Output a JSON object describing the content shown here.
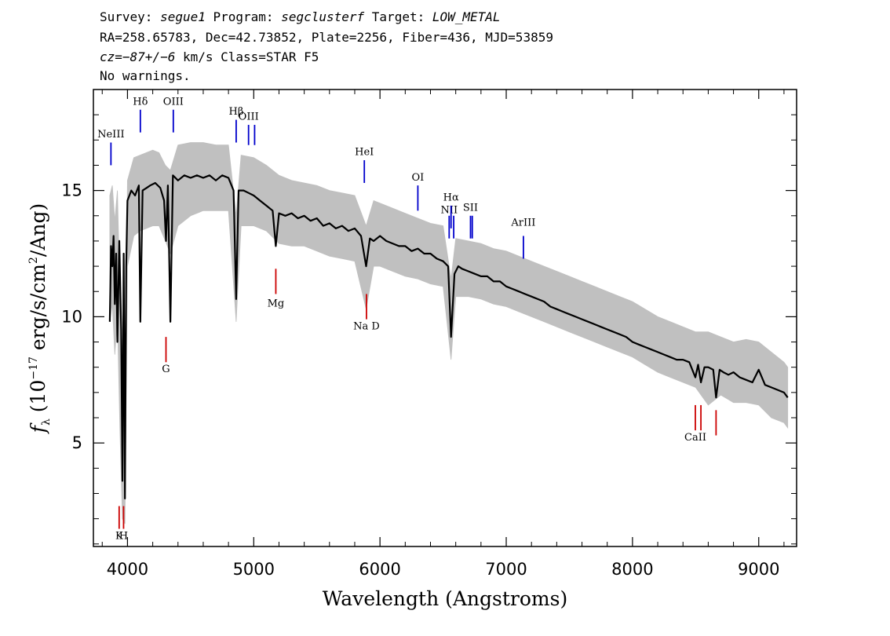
{
  "header": {
    "line1": {
      "survey_label": "Survey: ",
      "survey": "segue1",
      "program_label": " Program: ",
      "program": "segclusterf",
      "target_label": " Target: ",
      "target": "LOW_METAL"
    },
    "line2": "RA=258.65783, Dec=42.73852, Plate=2256, Fiber=436, MJD=53859",
    "line3": {
      "cz_label": "cz",
      "cz_value": "=−87+/−6",
      "cz_units": " km/s Class=STAR F5"
    },
    "line4": "No warnings."
  },
  "chart_data": {
    "type": "line",
    "xlabel": "Wavelength (Angstroms)",
    "ylabel": "f_λ (10^-17 erg/s/cm^2/Ang)",
    "ylabel_parts": {
      "f": "f",
      "sub": "λ",
      "pre": " (10",
      "sup1": "−17",
      "mid": " erg/s/cm",
      "sup2": "2",
      "post": "/Ang)"
    },
    "xlim": [
      3730,
      9300
    ],
    "ylim": [
      0.9,
      19.0
    ],
    "x_ticks": [
      4000,
      5000,
      6000,
      7000,
      8000,
      9000
    ],
    "x_tick_labels": [
      "4000",
      "5000",
      "6000",
      "7000",
      "8000",
      "9000"
    ],
    "y_ticks": [
      5,
      10,
      15
    ],
    "y_tick_labels": [
      "5",
      "10",
      "15"
    ],
    "series": [
      {
        "role": "error",
        "color": "#c0c0c0",
        "x": [
          3860,
          3880,
          3900,
          3920,
          3940,
          3960,
          3980,
          4000,
          4050,
          4100,
          4150,
          4200,
          4250,
          4300,
          4340,
          4400,
          4500,
          4600,
          4700,
          4800,
          4861,
          4900,
          5000,
          5100,
          5200,
          5300,
          5400,
          5500,
          5600,
          5700,
          5800,
          5890,
          5950,
          6000,
          6100,
          6200,
          6300,
          6400,
          6500,
          6563,
          6600,
          6700,
          6800,
          6900,
          7000,
          7100,
          7200,
          7300,
          7400,
          7500,
          7600,
          7700,
          7800,
          7900,
          8000,
          8100,
          8200,
          8300,
          8400,
          8500,
          8600,
          8700,
          8800,
          8900,
          9000,
          9100,
          9200,
          9230
        ],
        "upper": [
          14.8,
          15.2,
          13.8,
          15.0,
          11.0,
          8.5,
          6.0,
          15.4,
          16.3,
          16.4,
          16.5,
          16.6,
          16.5,
          16.0,
          15.8,
          16.8,
          16.9,
          16.9,
          16.8,
          16.8,
          14.0,
          16.4,
          16.3,
          16.0,
          15.6,
          15.4,
          15.3,
          15.2,
          15.0,
          14.9,
          14.8,
          13.6,
          14.6,
          14.5,
          14.3,
          14.1,
          13.9,
          13.7,
          13.6,
          11.5,
          13.1,
          13.0,
          12.9,
          12.7,
          12.6,
          12.4,
          12.2,
          12.0,
          11.8,
          11.6,
          11.4,
          11.2,
          11.0,
          10.8,
          10.6,
          10.3,
          10.0,
          9.8,
          9.6,
          9.4,
          9.4,
          9.2,
          9.0,
          9.1,
          9.0,
          8.6,
          8.2,
          8.0
        ],
        "lower": [
          9.8,
          10.5,
          8.5,
          10.0,
          5.5,
          2.0,
          1.8,
          12.0,
          13.2,
          13.4,
          13.5,
          13.6,
          13.6,
          13.0,
          12.5,
          13.6,
          14.0,
          14.2,
          14.2,
          14.2,
          9.8,
          13.6,
          13.6,
          13.4,
          12.9,
          12.8,
          12.8,
          12.6,
          12.4,
          12.3,
          12.2,
          10.3,
          12.0,
          12.0,
          11.8,
          11.6,
          11.5,
          11.3,
          11.2,
          8.3,
          10.8,
          10.8,
          10.7,
          10.5,
          10.4,
          10.2,
          10.0,
          9.8,
          9.6,
          9.4,
          9.2,
          9.0,
          8.8,
          8.6,
          8.4,
          8.1,
          7.8,
          7.6,
          7.4,
          7.2,
          6.5,
          6.9,
          6.6,
          6.6,
          6.5,
          6.0,
          5.8,
          5.6
        ]
      },
      {
        "role": "flux",
        "color": "#000000",
        "x": [
          3860,
          3870,
          3880,
          3890,
          3900,
          3910,
          3920,
          3935,
          3950,
          3960,
          3970,
          3980,
          3990,
          4000,
          4030,
          4060,
          4090,
          4102,
          4120,
          4150,
          4180,
          4220,
          4260,
          4290,
          4305,
          4320,
          4340,
          4360,
          4400,
          4450,
          4500,
          4550,
          4600,
          4650,
          4700,
          4750,
          4800,
          4840,
          4861,
          4880,
          4920,
          4960,
          5000,
          5050,
          5100,
          5150,
          5175,
          5200,
          5250,
          5300,
          5350,
          5400,
          5450,
          5500,
          5550,
          5600,
          5650,
          5700,
          5750,
          5800,
          5850,
          5890,
          5920,
          5950,
          6000,
          6050,
          6100,
          6150,
          6200,
          6250,
          6300,
          6350,
          6400,
          6450,
          6500,
          6540,
          6563,
          6590,
          6620,
          6650,
          6700,
          6750,
          6800,
          6850,
          6900,
          6950,
          7000,
          7050,
          7100,
          7150,
          7200,
          7250,
          7300,
          7350,
          7400,
          7450,
          7500,
          7550,
          7600,
          7650,
          7700,
          7750,
          7800,
          7850,
          7900,
          7950,
          8000,
          8050,
          8100,
          8150,
          8200,
          8250,
          8300,
          8350,
          8400,
          8450,
          8498,
          8520,
          8542,
          8570,
          8600,
          8640,
          8662,
          8690,
          8720,
          8760,
          8800,
          8850,
          8900,
          8950,
          9000,
          9050,
          9100,
          9150,
          9200,
          9230
        ],
        "y": [
          9.8,
          12.8,
          12.0,
          13.2,
          10.5,
          12.5,
          9.0,
          13.0,
          9.5,
          3.5,
          12.5,
          2.8,
          12.0,
          14.6,
          15.0,
          14.8,
          15.2,
          9.8,
          15.0,
          15.1,
          15.2,
          15.3,
          15.1,
          14.6,
          13.0,
          15.2,
          9.8,
          15.6,
          15.4,
          15.6,
          15.5,
          15.6,
          15.5,
          15.6,
          15.4,
          15.6,
          15.5,
          15.0,
          10.7,
          15.0,
          15.0,
          14.9,
          14.8,
          14.6,
          14.4,
          14.2,
          12.8,
          14.1,
          14.0,
          14.1,
          13.9,
          14.0,
          13.8,
          13.9,
          13.6,
          13.7,
          13.5,
          13.6,
          13.4,
          13.5,
          13.2,
          12.0,
          13.1,
          13.0,
          13.2,
          13.0,
          12.9,
          12.8,
          12.8,
          12.6,
          12.7,
          12.5,
          12.5,
          12.3,
          12.2,
          12.0,
          9.2,
          11.7,
          12.0,
          11.9,
          11.8,
          11.7,
          11.6,
          11.6,
          11.4,
          11.4,
          11.2,
          11.1,
          11.0,
          10.9,
          10.8,
          10.7,
          10.6,
          10.4,
          10.3,
          10.2,
          10.1,
          10.0,
          9.9,
          9.8,
          9.7,
          9.6,
          9.5,
          9.4,
          9.3,
          9.2,
          9.0,
          8.9,
          8.8,
          8.7,
          8.6,
          8.5,
          8.4,
          8.3,
          8.3,
          8.2,
          7.6,
          8.1,
          7.4,
          8.0,
          8.0,
          7.9,
          6.8,
          7.9,
          7.8,
          7.7,
          7.8,
          7.6,
          7.5,
          7.4,
          7.9,
          7.3,
          7.2,
          7.1,
          7.0,
          6.8
        ]
      }
    ],
    "emission_color": "#0000cc",
    "absorption_color": "#cc0000",
    "emission_lines": [
      {
        "label": "NeIII",
        "x": 3869,
        "y_top": 16.9,
        "y_bottom": 16.0,
        "label_y": 17.1
      },
      {
        "label": "Hδ",
        "x": 4102,
        "y_top": 18.2,
        "y_bottom": 17.3,
        "label_y": 18.4
      },
      {
        "label": "OIII",
        "x": 4363,
        "y_top": 18.2,
        "y_bottom": 17.3,
        "label_y": 18.4
      },
      {
        "label": "Hβ",
        "x": 4861,
        "y_top": 17.8,
        "y_bottom": 16.9,
        "label_y": 18.0
      },
      {
        "label": "OIII",
        "x": 4959,
        "y_top": 17.6,
        "y_bottom": 16.8,
        "label_y": 17.8
      },
      {
        "label": "OIII",
        "x": 5007,
        "y_top": 17.6,
        "y_bottom": 16.8,
        "label_y": 17.8
      },
      {
        "label": "HeI",
        "x": 5876,
        "y_top": 16.2,
        "y_bottom": 15.3,
        "label_y": 16.4
      },
      {
        "label": "OI",
        "x": 6300,
        "y_top": 15.2,
        "y_bottom": 14.2,
        "label_y": 15.4
      },
      {
        "label": "NII",
        "x": 6548,
        "y_top": 14.0,
        "y_bottom": 13.1,
        "label_y": 14.1
      },
      {
        "label": "Hα",
        "x": 6563,
        "y_top": 14.4,
        "y_bottom": 13.5,
        "label_y": 14.6
      },
      {
        "label": "NII",
        "x": 6584,
        "y_top": 14.0,
        "y_bottom": 13.1,
        "label_y": 14.1
      },
      {
        "label": "SII",
        "x": 6717,
        "y_top": 14.0,
        "y_bottom": 13.1,
        "label_y": 14.2
      },
      {
        "label": "SII",
        "x": 6731,
        "y_top": 14.0,
        "y_bottom": 13.1,
        "label_y": 14.2
      },
      {
        "label": "ArIII",
        "x": 7136,
        "y_top": 13.2,
        "y_bottom": 12.3,
        "label_y": 13.6
      }
    ],
    "absorption_lines": [
      {
        "label": "K",
        "x": 3934,
        "y_top": 2.5,
        "y_bottom": 1.6,
        "label_y": 1.2
      },
      {
        "label": "H",
        "x": 3969,
        "y_top": 2.5,
        "y_bottom": 1.6,
        "label_y": 1.2
      },
      {
        "label": "G",
        "x": 4305,
        "y_top": 9.2,
        "y_bottom": 8.2,
        "label_y": 7.8
      },
      {
        "label": "Mg",
        "x": 5175,
        "y_top": 11.9,
        "y_bottom": 10.9,
        "label_y": 10.4
      },
      {
        "label": "Na D",
        "x": 5893,
        "y_top": 10.9,
        "y_bottom": 9.9,
        "label_y": 9.5
      },
      {
        "label": "CaII",
        "x": 8498,
        "y_top": 6.5,
        "y_bottom": 5.5,
        "label_y": 5.1
      },
      {
        "label": "CaII",
        "x": 8542,
        "y_top": 6.5,
        "y_bottom": 5.5,
        "label_y": 5.1
      },
      {
        "label": "CaII",
        "x": 8662,
        "y_top": 6.3,
        "y_bottom": 5.3,
        "label_y": 5.1
      }
    ]
  }
}
